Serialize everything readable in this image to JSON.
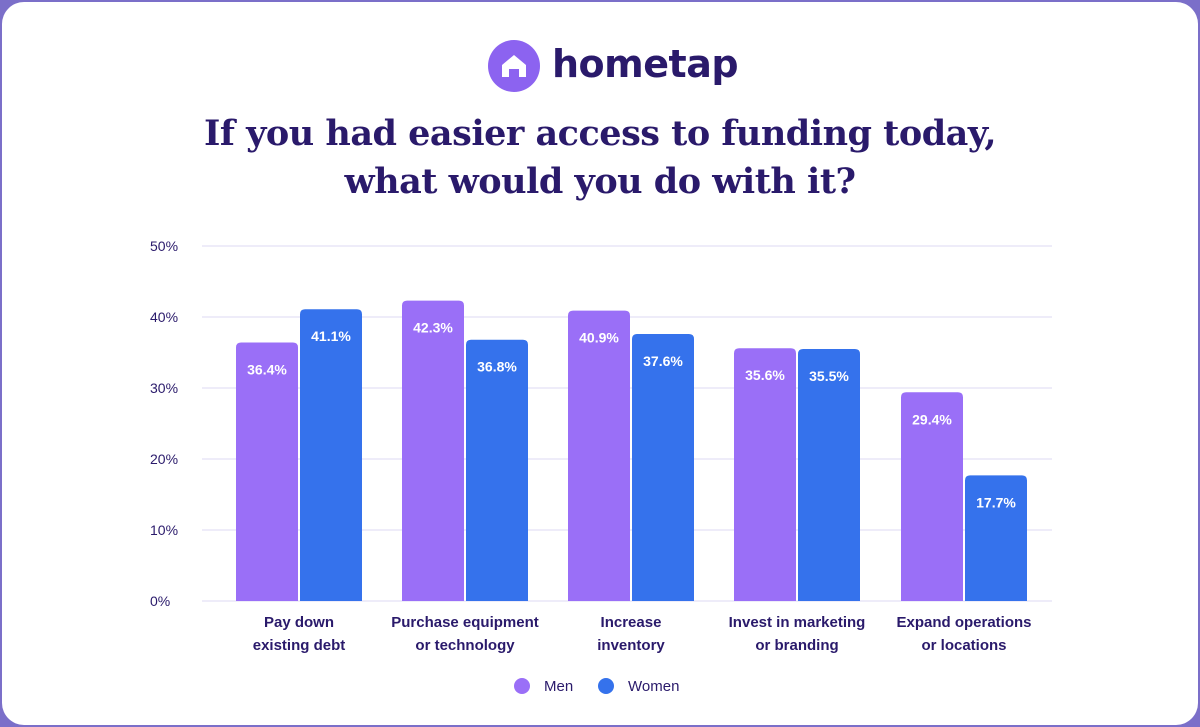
{
  "brand": {
    "name": "hometap",
    "logo_icon": "house-icon"
  },
  "colors": {
    "men": "#9a6ff7",
    "women": "#3572ec",
    "text": "#2a1a6b",
    "grid": "#dcd9f3",
    "background": "#ffffff"
  },
  "chart_data": {
    "type": "bar",
    "title_lines": [
      "If you had easier access to funding today,",
      "what would you do with it?"
    ],
    "categories": [
      [
        "Pay down",
        "existing debt"
      ],
      [
        "Purchase equipment",
        "or technology"
      ],
      [
        "Increase",
        "inventory"
      ],
      [
        "Invest in marketing",
        "or branding"
      ],
      [
        "Expand operations",
        "or locations"
      ]
    ],
    "series": [
      {
        "name": "Men",
        "values": [
          36.4,
          42.3,
          40.9,
          35.6,
          29.4
        ],
        "labels": [
          "36.4%",
          "42.3%",
          "40.9%",
          "35.6%",
          "29.4%"
        ]
      },
      {
        "name": "Women",
        "values": [
          41.1,
          36.8,
          37.6,
          35.5,
          17.7
        ],
        "labels": [
          "41.1%",
          "36.8%",
          "37.6%",
          "35.5%",
          "17.7%"
        ]
      }
    ],
    "ylim": [
      0,
      50
    ],
    "yticks": [
      0,
      10,
      20,
      30,
      40,
      50
    ],
    "ytick_labels": [
      "0%",
      "10%",
      "20%",
      "30%",
      "40%",
      "50%"
    ],
    "grid": true,
    "legend_position": "bottom-center"
  }
}
